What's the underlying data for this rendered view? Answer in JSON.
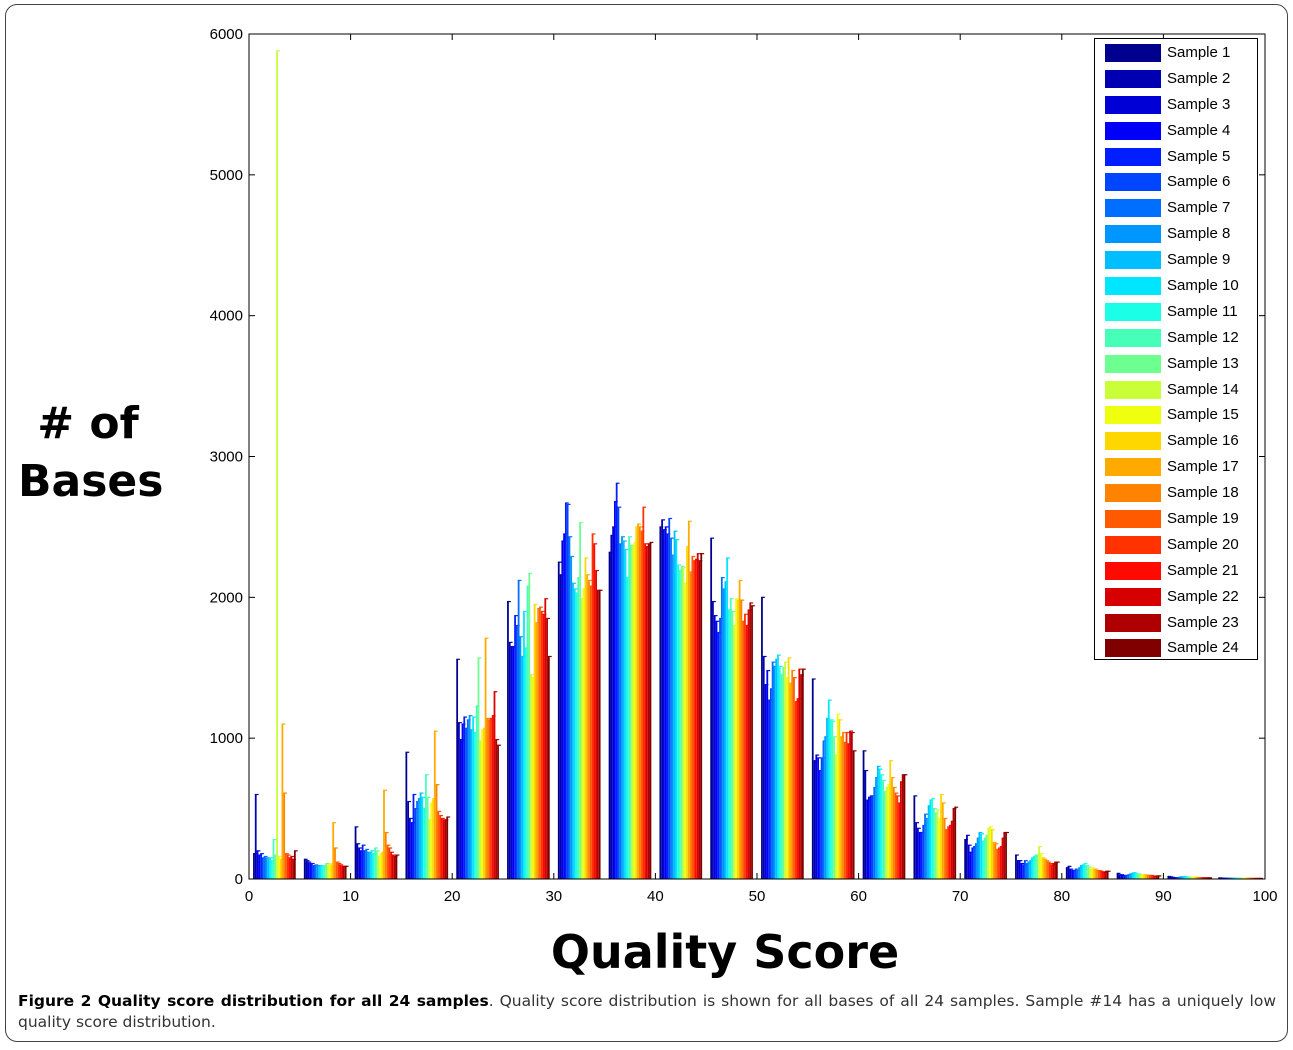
{
  "figure": {
    "ylabel_lines": [
      "# of",
      "Bases"
    ],
    "xlabel": "Quality Score",
    "caption_bold": "Figure 2 Quality score distribution for all 24 samples",
    "caption_rest": ". Quality score distribution is shown for all bases of all 24 samples. Sample #14 has a uniquely low quality score distribution."
  },
  "chart_data": {
    "type": "bar",
    "title": "",
    "xlabel": "Quality Score",
    "ylabel": "# of Bases",
    "xlim": [
      0,
      100
    ],
    "ylim": [
      0,
      6000
    ],
    "xticks": [
      0,
      10,
      20,
      30,
      40,
      50,
      60,
      70,
      80,
      90,
      100
    ],
    "yticks": [
      0,
      1000,
      2000,
      3000,
      4000,
      5000,
      6000
    ],
    "grid": false,
    "legend_position": "top-right",
    "categories": [
      2.5,
      7.5,
      12.5,
      17.5,
      22.5,
      27.5,
      32.5,
      37.5,
      42.5,
      47.5,
      52.5,
      57.5,
      62.5,
      67.5,
      72.5,
      77.5,
      82.5,
      87.5,
      92.5,
      97.5
    ],
    "series": [
      {
        "name": "Sample 1",
        "color": "#00008F",
        "values": [
          180,
          140,
          370,
          900,
          1560,
          1970,
          2250,
          2320,
          2500,
          2420,
          2000,
          1420,
          910,
          590,
          280,
          170,
          80,
          40,
          18,
          8
        ]
      },
      {
        "name": "Sample 2",
        "color": "#0000B2",
        "values": [
          600,
          130,
          250,
          550,
          1110,
          1680,
          2160,
          2440,
          2550,
          1970,
          1580,
          840,
          770,
          400,
          310,
          130,
          90,
          30,
          15,
          6
        ]
      },
      {
        "name": "Sample 3",
        "color": "#0000D6",
        "values": [
          200,
          120,
          220,
          430,
          990,
          1650,
          2400,
          2500,
          2480,
          1870,
          1380,
          880,
          560,
          360,
          240,
          130,
          70,
          30,
          12,
          5
        ]
      },
      {
        "name": "Sample 4",
        "color": "#0000FA",
        "values": [
          170,
          110,
          200,
          400,
          1100,
          1650,
          2450,
          2680,
          2500,
          1830,
          1480,
          860,
          580,
          330,
          190,
          110,
          60,
          25,
          10,
          5
        ]
      },
      {
        "name": "Sample 5",
        "color": "#001EFF",
        "values": [
          180,
          110,
          240,
          600,
          1150,
          1870,
          2670,
          2810,
          2450,
          1750,
          1270,
          770,
          590,
          330,
          220,
          100,
          60,
          25,
          10,
          5
        ]
      },
      {
        "name": "Sample 6",
        "color": "#0046FF",
        "values": [
          150,
          95,
          200,
          500,
          1070,
          1800,
          2660,
          2640,
          2560,
          1850,
          1350,
          860,
          590,
          380,
          230,
          130,
          70,
          25,
          10,
          5
        ]
      },
      {
        "name": "Sample 7",
        "color": "#006EFF",
        "values": [
          160,
          100,
          210,
          550,
          1130,
          2120,
          2430,
          2380,
          2420,
          2140,
          1540,
          980,
          650,
          460,
          250,
          110,
          60,
          30,
          12,
          5
        ]
      },
      {
        "name": "Sample 8",
        "color": "#0096FF",
        "values": [
          150,
          95,
          190,
          570,
          1160,
          1720,
          2290,
          2430,
          2300,
          2060,
          1510,
          1010,
          720,
          430,
          290,
          120,
          80,
          35,
          15,
          5
        ]
      },
      {
        "name": "Sample 9",
        "color": "#00BEFF",
        "values": [
          140,
          90,
          180,
          610,
          1060,
          1580,
          2100,
          2400,
          2470,
          2110,
          1560,
          1140,
          800,
          520,
          330,
          130,
          95,
          40,
          15,
          5
        ]
      },
      {
        "name": "Sample 10",
        "color": "#00E6FF",
        "values": [
          150,
          95,
          200,
          580,
          1150,
          1900,
          2060,
          2340,
          2410,
          2280,
          1590,
          1270,
          780,
          560,
          320,
          150,
          100,
          45,
          18,
          5
        ]
      },
      {
        "name": "Sample 11",
        "color": "#1AFFE6",
        "values": [
          130,
          85,
          180,
          500,
          1040,
          1640,
          2030,
          2140,
          2230,
          1910,
          1510,
          1130,
          740,
          570,
          270,
          160,
          110,
          40,
          15,
          5
        ]
      },
      {
        "name": "Sample 12",
        "color": "#46FFB8",
        "values": [
          280,
          95,
          220,
          740,
          1230,
          2080,
          2140,
          2430,
          2190,
          1990,
          1450,
          1120,
          700,
          500,
          290,
          170,
          95,
          35,
          12,
          5
        ]
      },
      {
        "name": "Sample 13",
        "color": "#6EFF91",
        "values": [
          170,
          110,
          200,
          580,
          1570,
          2170,
          2530,
          2370,
          2220,
          1900,
          1500,
          1010,
          620,
          470,
          310,
          170,
          85,
          35,
          12,
          5
        ]
      },
      {
        "name": "Sample 14",
        "color": "#C8FF37",
        "values": [
          5880,
          100,
          160,
          420,
          980,
          1450,
          1990,
          2360,
          2210,
          1800,
          1540,
          880,
          650,
          490,
          360,
          230,
          70,
          30,
          12,
          5
        ]
      },
      {
        "name": "Sample 15",
        "color": "#F0FF0F",
        "values": [
          160,
          110,
          180,
          540,
          1060,
          1430,
          2060,
          2390,
          2100,
          1990,
          1430,
          1170,
          670,
          430,
          370,
          180,
          80,
          30,
          12,
          5
        ]
      },
      {
        "name": "Sample 16",
        "color": "#FFD700",
        "values": [
          140,
          100,
          190,
          570,
          1070,
          1950,
          2280,
          2500,
          2360,
          1980,
          1570,
          1130,
          840,
          600,
          350,
          150,
          70,
          30,
          12,
          5
        ]
      },
      {
        "name": "Sample 17",
        "color": "#FFAA00",
        "values": [
          1100,
          400,
          630,
          1050,
          1710,
          1820,
          2160,
          2520,
          2540,
          2120,
          1390,
          1010,
          720,
          540,
          260,
          140,
          70,
          28,
          10,
          5
        ]
      },
      {
        "name": "Sample 18",
        "color": "#FF8200",
        "values": [
          610,
          220,
          330,
          670,
          1140,
          1920,
          2120,
          2500,
          2180,
          1980,
          1480,
          1040,
          650,
          430,
          250,
          130,
          60,
          25,
          10,
          5
        ]
      },
      {
        "name": "Sample 19",
        "color": "#FF5A00",
        "values": [
          180,
          120,
          240,
          480,
          1130,
          1930,
          2080,
          2470,
          2290,
          1830,
          1430,
          970,
          610,
          350,
          210,
          120,
          60,
          25,
          10,
          4
        ]
      },
      {
        "name": "Sample 20",
        "color": "#FF3200",
        "values": [
          170,
          110,
          220,
          450,
          1140,
          1900,
          2450,
          2640,
          2260,
          1880,
          1260,
          1040,
          590,
          370,
          220,
          110,
          55,
          25,
          10,
          4
        ]
      },
      {
        "name": "Sample 21",
        "color": "#FF0A00",
        "values": [
          150,
          100,
          190,
          430,
          1160,
          1880,
          2380,
          2380,
          2270,
          1800,
          1280,
          960,
          540,
          380,
          230,
          100,
          50,
          20,
          8,
          4
        ]
      },
      {
        "name": "Sample 22",
        "color": "#D60000",
        "values": [
          160,
          90,
          170,
          420,
          1330,
          1990,
          2190,
          2360,
          2310,
          1910,
          1490,
          1050,
          690,
          410,
          290,
          110,
          50,
          20,
          8,
          4
        ]
      },
      {
        "name": "Sample 23",
        "color": "#AE0000",
        "values": [
          140,
          90,
          160,
          420,
          990,
          1850,
          2050,
          2380,
          2260,
          1960,
          1450,
          1040,
          740,
          500,
          330,
          120,
          55,
          22,
          8,
          4
        ]
      },
      {
        "name": "Sample 24",
        "color": "#800000",
        "values": [
          200,
          90,
          170,
          440,
          950,
          1580,
          2050,
          2390,
          2310,
          1940,
          1490,
          910,
          740,
          510,
          330,
          120,
          55,
          22,
          8,
          4
        ]
      }
    ]
  }
}
